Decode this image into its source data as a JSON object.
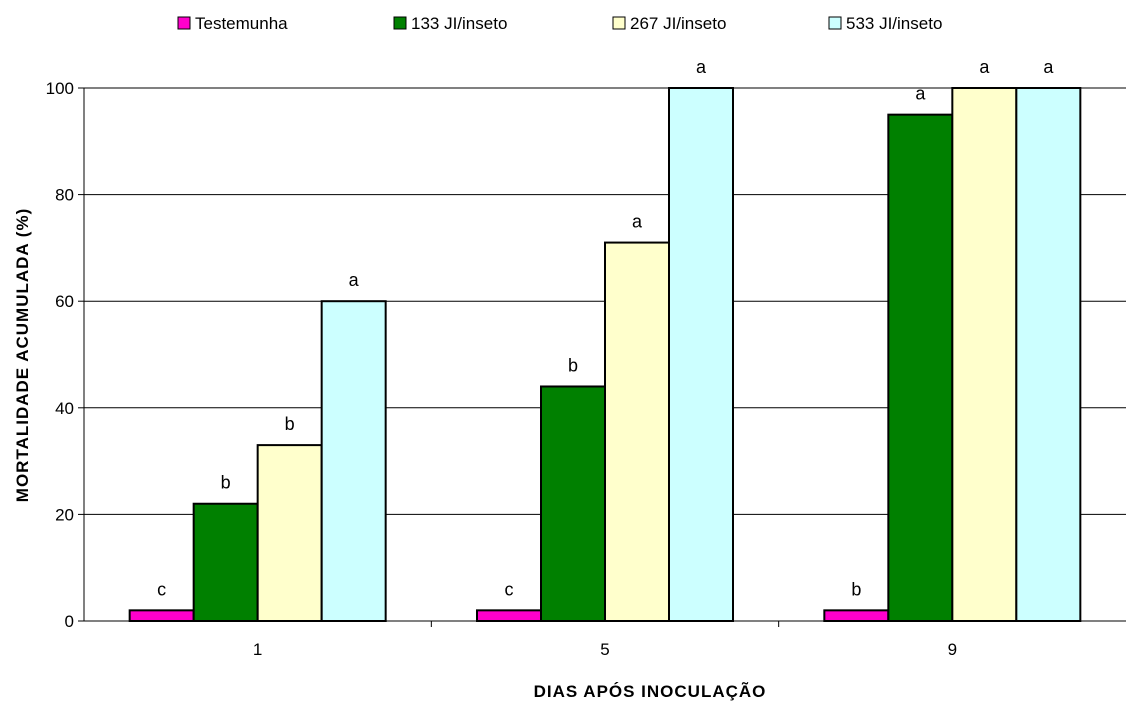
{
  "chart_data": {
    "type": "bar",
    "title": "",
    "xlabel": "DIAS APÓS INOCULAÇÃO",
    "ylabel": "MORTALIDADE ACUMULADA (%)",
    "ylim": [
      0,
      100
    ],
    "yticks": [
      0,
      20,
      40,
      60,
      80,
      100
    ],
    "grid": true,
    "legend_position": "top",
    "categories": [
      "1",
      "5",
      "9"
    ],
    "series": [
      {
        "name": "Testemunha",
        "color": "#FF00CC",
        "values": [
          2,
          2,
          2
        ],
        "labels": [
          "c",
          "c",
          "b"
        ]
      },
      {
        "name": "133 JI/inseto",
        "color": "#008000",
        "values": [
          22,
          44,
          95
        ],
        "labels": [
          "b",
          "b",
          "a"
        ]
      },
      {
        "name": "267 JI/inseto",
        "color": "#FFFFCC",
        "values": [
          33,
          71,
          100
        ],
        "labels": [
          "b",
          "a",
          "a"
        ]
      },
      {
        "name": "533 JI/inseto",
        "color": "#CCFFFF",
        "values": [
          60,
          100,
          100
        ],
        "labels": [
          "a",
          "a",
          "a"
        ]
      }
    ]
  }
}
